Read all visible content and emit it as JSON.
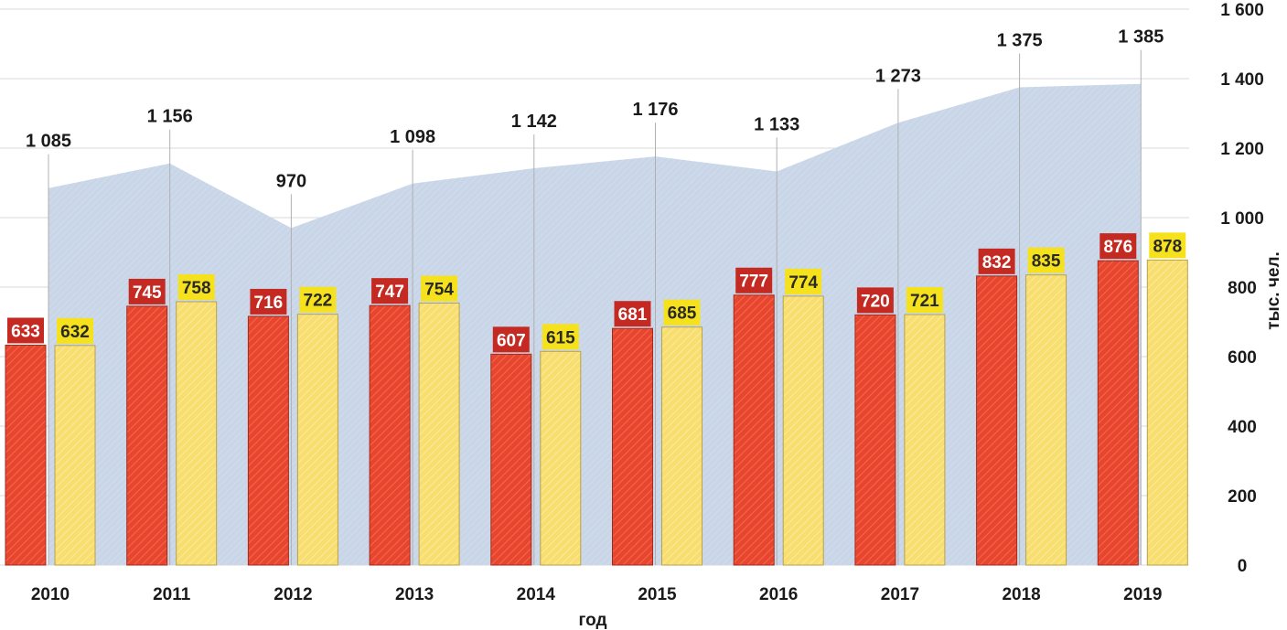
{
  "chart_data": {
    "type": "bar",
    "categories": [
      "2010",
      "2011",
      "2012",
      "2013",
      "2014",
      "2015",
      "2016",
      "2017",
      "2018",
      "2019"
    ],
    "area_series": {
      "values": [
        1085,
        1156,
        970,
        1098,
        1142,
        1176,
        1133,
        1273,
        1375,
        1385
      ],
      "labels": [
        "1 085",
        "1 156",
        "970",
        "1 098",
        "1 142",
        "1 176",
        "1 133",
        "1 273",
        "1 375",
        "1 385"
      ],
      "color": "#c9d6e8"
    },
    "series": [
      {
        "values": [
          633,
          745,
          716,
          747,
          607,
          681,
          777,
          720,
          832,
          876
        ],
        "color": "#e8452e",
        "label_bg": "#c42a22",
        "label_color": "#ffffff"
      },
      {
        "values": [
          632,
          758,
          722,
          754,
          615,
          685,
          774,
          721,
          835,
          878
        ],
        "color": "#f7de6e",
        "label_bg": "#f5e11c",
        "label_color": "#2a2a2a"
      }
    ],
    "xlabel": "год",
    "ylabel": "тыс. чел.",
    "ylim": [
      0,
      1600
    ],
    "yticks": [
      0,
      200,
      400,
      600,
      800,
      1000,
      1200,
      1400,
      1600
    ],
    "ytick_labels": [
      "0",
      "200",
      "400",
      "600",
      "800",
      "1 000",
      "1 200",
      "1 400",
      "1 600"
    ],
    "y_axis_position": "right",
    "grid": true
  }
}
